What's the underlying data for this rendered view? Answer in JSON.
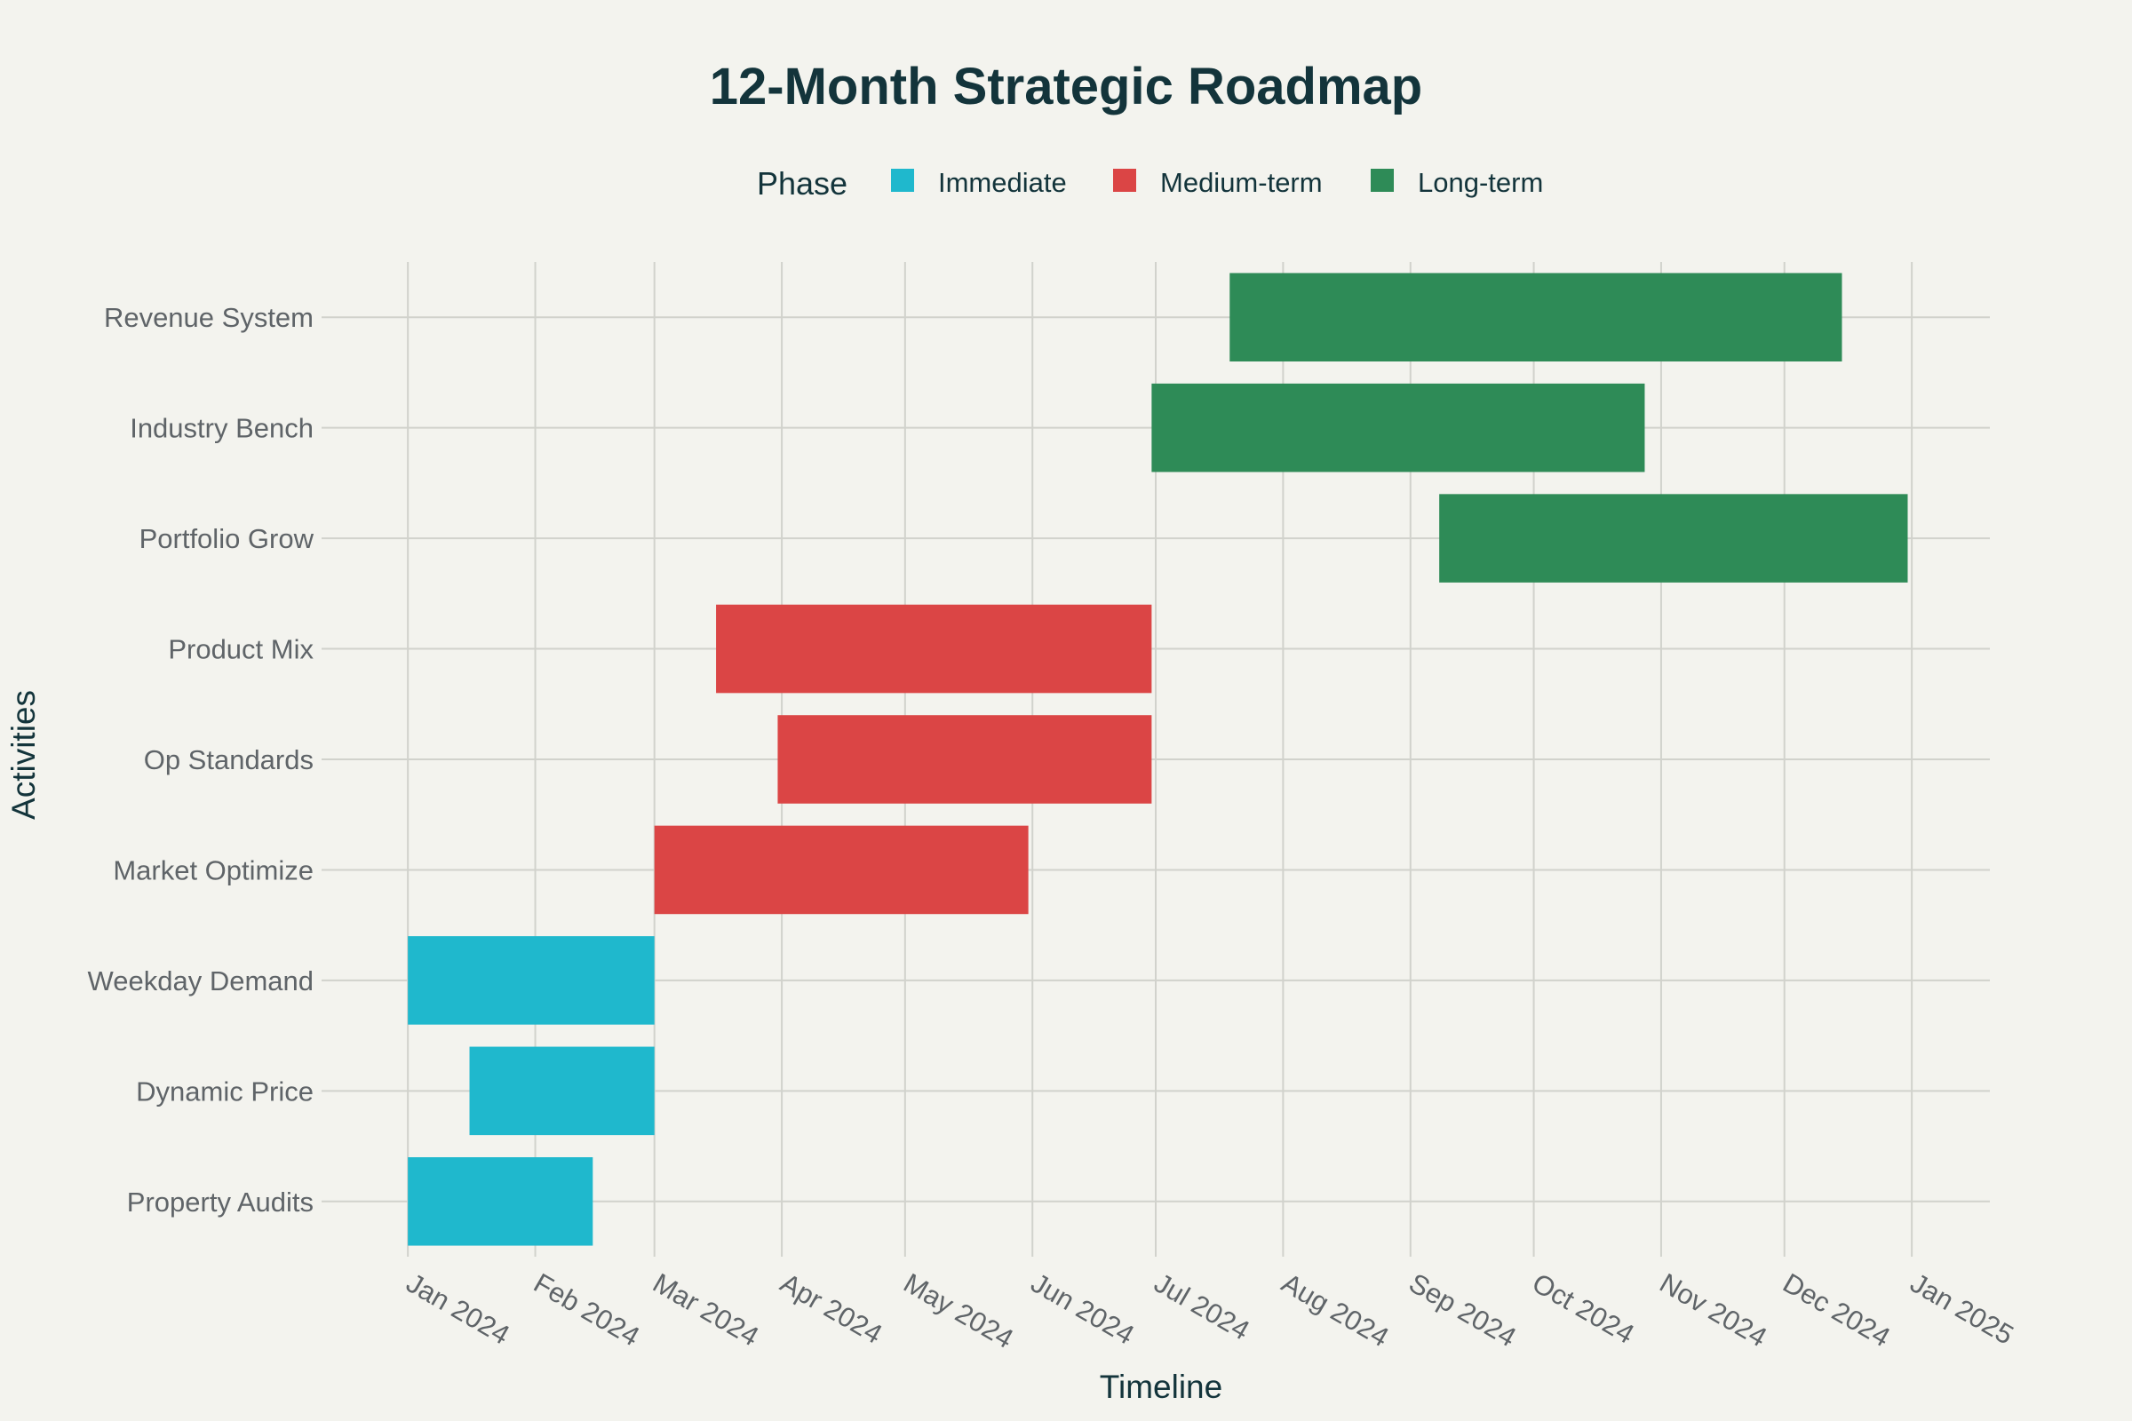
{
  "chart_data": {
    "type": "gantt",
    "title": "12-Month Strategic Roadmap",
    "xlabel": "Timeline",
    "ylabel": "Activities",
    "legend": {
      "title": "Phase",
      "placement": "top-center",
      "entries": [
        {
          "name": "Immediate",
          "color": "#1fb8cd"
        },
        {
          "name": "Medium-term",
          "color": "#db4545"
        },
        {
          "name": "Long-term",
          "color": "#2e8b57"
        }
      ]
    },
    "xlim": [
      "2023-12-11",
      "2025-01-20"
    ],
    "x_ticks": [
      {
        "date": "2024-01-01",
        "label": "Jan 2024"
      },
      {
        "date": "2024-02-01",
        "label": "Feb 2024"
      },
      {
        "date": "2024-03-01",
        "label": "Mar 2024"
      },
      {
        "date": "2024-04-01",
        "label": "Apr 2024"
      },
      {
        "date": "2024-05-01",
        "label": "May 2024"
      },
      {
        "date": "2024-06-01",
        "label": "Jun 2024"
      },
      {
        "date": "2024-07-01",
        "label": "Jul 2024"
      },
      {
        "date": "2024-08-01",
        "label": "Aug 2024"
      },
      {
        "date": "2024-09-01",
        "label": "Sep 2024"
      },
      {
        "date": "2024-10-01",
        "label": "Oct 2024"
      },
      {
        "date": "2024-11-01",
        "label": "Nov 2024"
      },
      {
        "date": "2024-12-01",
        "label": "Dec 2024"
      },
      {
        "date": "2025-01-01",
        "label": "Jan 2025"
      }
    ],
    "grid": true,
    "tasks": [
      {
        "name": "Revenue System",
        "phase": "Long-term",
        "start": "2024-07-19",
        "end": "2024-12-15"
      },
      {
        "name": "Industry Bench",
        "phase": "Long-term",
        "start": "2024-06-30",
        "end": "2024-10-28"
      },
      {
        "name": "Portfolio Grow",
        "phase": "Long-term",
        "start": "2024-09-08",
        "end": "2024-12-31"
      },
      {
        "name": "Product Mix",
        "phase": "Medium-term",
        "start": "2024-03-16",
        "end": "2024-06-30"
      },
      {
        "name": "Op Standards",
        "phase": "Medium-term",
        "start": "2024-03-31",
        "end": "2024-06-30"
      },
      {
        "name": "Market Optimize",
        "phase": "Medium-term",
        "start": "2024-03-01",
        "end": "2024-05-31"
      },
      {
        "name": "Weekday Demand",
        "phase": "Immediate",
        "start": "2024-01-01",
        "end": "2024-03-01"
      },
      {
        "name": "Dynamic Price",
        "phase": "Immediate",
        "start": "2024-01-16",
        "end": "2024-03-01"
      },
      {
        "name": "Property Audits",
        "phase": "Immediate",
        "start": "2024-01-01",
        "end": "2024-02-15"
      }
    ]
  }
}
